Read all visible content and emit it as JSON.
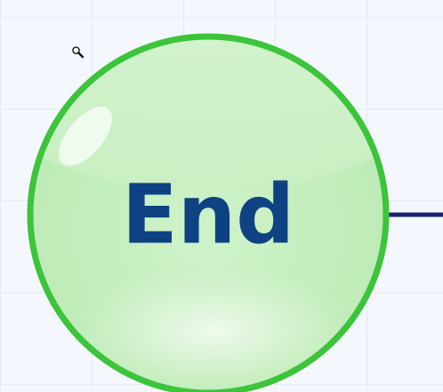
{
  "diagram": {
    "end_node": {
      "label": "End",
      "fill_color": "#c3edbc",
      "border_color": "#3cc43a",
      "text_color": "#0e4282"
    },
    "connector": {
      "color": "#1b2472"
    },
    "cursor": {
      "icon": "magnifier-icon"
    }
  }
}
